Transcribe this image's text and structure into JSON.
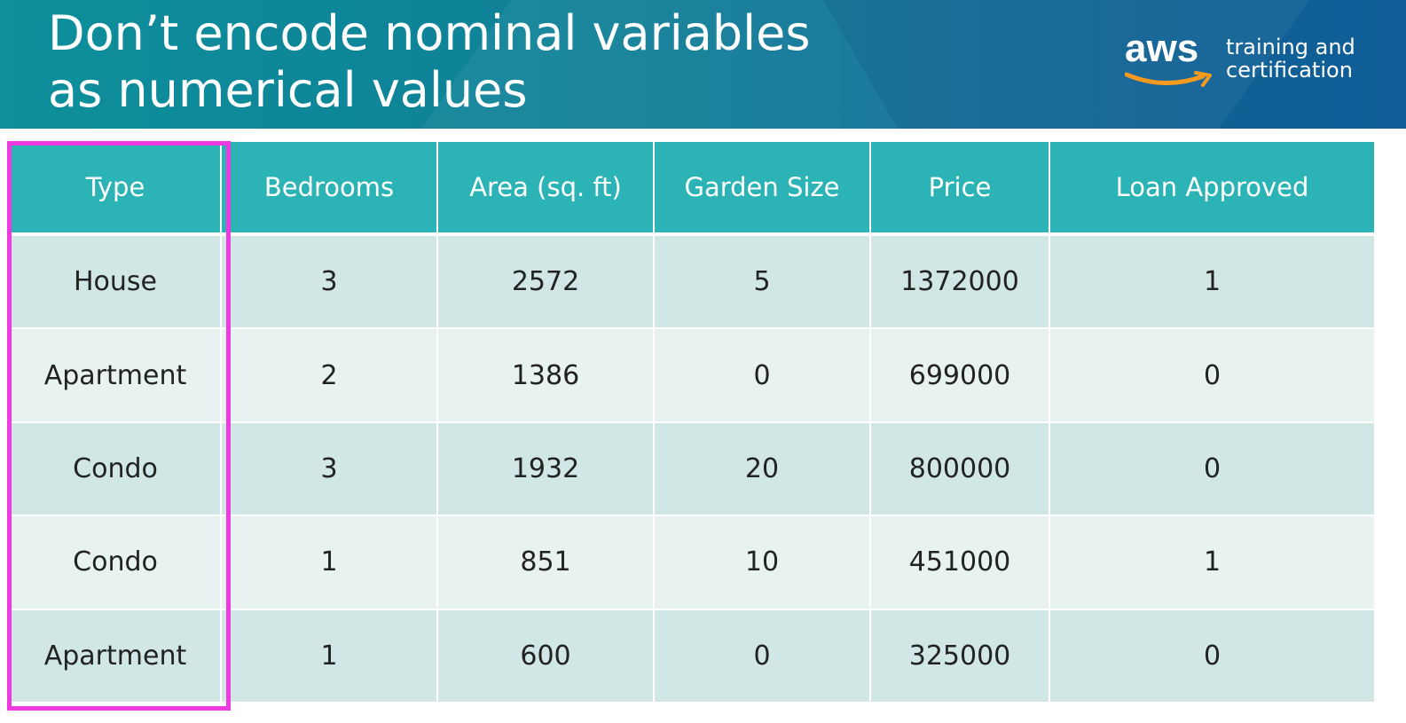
{
  "slide": {
    "title_line1": "Don’t encode nominal variables",
    "title_line2": "as numerical values"
  },
  "logo": {
    "wordmark": "aws",
    "tagline_line1": "training and",
    "tagline_line2": "certification"
  },
  "table": {
    "headers": [
      "Type",
      "Bedrooms",
      "Area (sq. ft)",
      "Garden Size",
      "Price",
      "Loan Approved"
    ],
    "rows": [
      [
        "House",
        "3",
        "2572",
        "5",
        "1372000",
        "1"
      ],
      [
        "Apartment",
        "2",
        "1386",
        "0",
        "699000",
        "0"
      ],
      [
        "Condo",
        "3",
        "1932",
        "20",
        "800000",
        "0"
      ],
      [
        "Condo",
        "1",
        "851",
        "10",
        "451000",
        "1"
      ],
      [
        "Apartment",
        "1",
        "600",
        "0",
        "325000",
        "0"
      ]
    ]
  },
  "colors": {
    "banner": "#0f7f97",
    "header": "#2cb3b6",
    "row_dark": "#d0e7e6",
    "row_light": "#e8f2f1",
    "highlight": "#ee3ae0",
    "aws_smile": "#f79a1e"
  }
}
